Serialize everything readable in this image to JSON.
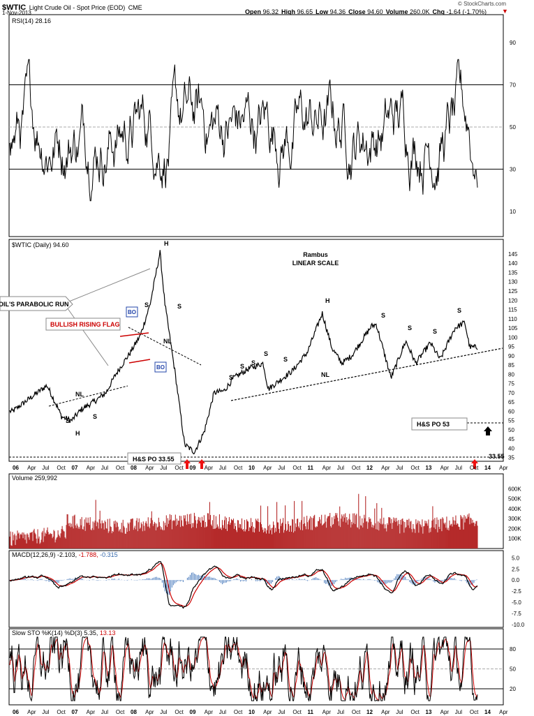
{
  "header": {
    "symbol": "$WTIC",
    "name": "Light Crude Oil - Spot Price (EOD)",
    "exchange": "CME",
    "date": "1-Nov-2013",
    "copyright": "© StockCharts.com",
    "stats": [
      {
        "label": "Open",
        "value": "96.32"
      },
      {
        "label": "High",
        "value": "96.65"
      },
      {
        "label": "Low",
        "value": "94.36"
      },
      {
        "label": "Close",
        "value": "94.60"
      },
      {
        "label": "Volume",
        "value": "260.0K"
      },
      {
        "label": "Chg",
        "value": "-1.64 (-1.70%)"
      }
    ],
    "down_arrow_color": "#cc0000"
  },
  "x_labels": [
    "06",
    "Apr",
    "Jul",
    "Oct",
    "07",
    "Apr",
    "Jul",
    "Oct",
    "08",
    "Apr",
    "Jul",
    "Oct",
    "09",
    "Apr",
    "Jul",
    "Oct",
    "10",
    "Apr",
    "Jul",
    "Oct",
    "11",
    "Apr",
    "Jul",
    "Oct",
    "12",
    "Apr",
    "Jul",
    "Oct",
    "13",
    "Apr",
    "Jul",
    "Oct",
    "14",
    "Apr"
  ],
  "chart_data": [
    {
      "type": "line",
      "title": "RSI(14) 28.16",
      "ylim": [
        0,
        100
      ],
      "yticks": [
        90,
        70,
        50,
        30,
        10
      ],
      "reference_lines": [
        70,
        50,
        30
      ],
      "series": [
        {
          "name": "RSI(14)",
          "last": 28.16
        }
      ]
    },
    {
      "type": "line",
      "title": "$WTIC (Daily) 94.60",
      "scale": "linear",
      "ylim": [
        33,
        148
      ],
      "yticks": [
        145,
        140,
        135,
        130,
        125,
        120,
        115,
        110,
        105,
        100,
        95,
        90,
        85,
        80,
        75,
        70,
        65,
        60,
        55,
        50,
        45,
        40,
        35
      ],
      "series": [
        {
          "name": "$WTIC",
          "x": [
            "2006-01",
            "2006-04",
            "2006-07",
            "2006-08",
            "2006-10",
            "2006-11",
            "2007-01",
            "2007-03",
            "2007-06",
            "2007-08",
            "2007-10",
            "2008-01",
            "2008-03",
            "2008-05",
            "2008-07",
            "2008-08",
            "2008-10",
            "2008-12",
            "2009-02",
            "2009-04",
            "2009-06",
            "2009-08",
            "2009-10",
            "2010-01",
            "2010-04",
            "2010-05",
            "2010-07",
            "2010-10",
            "2011-01",
            "2011-04",
            "2011-06",
            "2011-08",
            "2011-10",
            "2012-02",
            "2012-03",
            "2012-06",
            "2012-09",
            "2012-11",
            "2013-02",
            "2013-04",
            "2013-07",
            "2013-09",
            "2013-10"
          ],
          "values": [
            60,
            66,
            72,
            74,
            63,
            57,
            55,
            61,
            66,
            70,
            80,
            92,
            101,
            118,
            146,
            118,
            82,
            42,
            38,
            49,
            70,
            71,
            78,
            83,
            86,
            72,
            76,
            82,
            92,
            113,
            94,
            86,
            90,
            106,
            107,
            78,
            98,
            86,
            97,
            88,
            105,
            108,
            94.6
          ]
        }
      ],
      "annotations": {
        "watermark": [
          "Rambus",
          "LINEAR SCALE"
        ],
        "neckline_labels": [
          "NL",
          "NL",
          "NL"
        ],
        "shoulder_labels": [
          "S",
          "S",
          "S",
          "S",
          "S",
          "S",
          "S",
          "S",
          "S",
          "S",
          "S",
          "S",
          "S",
          "S",
          "S",
          "S",
          "S",
          "S"
        ],
        "head_labels": [
          "H",
          "H",
          "H"
        ],
        "bo_labels": [
          "BO",
          "BO"
        ],
        "parabolic": "OIL'S PARABOLIC RUN",
        "flag": "BULLISH RISING FLAG",
        "hs_po_low": "H&S PO 33.55",
        "hs_po_low_value": "33.55",
        "hs_po_high": "H&S PO 53",
        "box_border": "#2244aa",
        "flag_color": "#cc0000",
        "arrow_red": "#ee1111"
      }
    },
    {
      "type": "bar",
      "title": "Volume 259,992",
      "ylim": [
        0,
        700
      ],
      "yticks": [
        "600K",
        "500K",
        "400K",
        "300K",
        "200K",
        "100K"
      ],
      "color": "#b52a2a"
    },
    {
      "type": "line",
      "title_parts": [
        "MACD(12,26,9)",
        "-2.103,",
        "-1.788,",
        "-0.315"
      ],
      "title_colors": [
        "#000000",
        "#000000",
        "#cc0000",
        "#3366aa"
      ],
      "ylim": [
        -10.5,
        6
      ],
      "yticks": [
        "5.0",
        "2.5",
        "0.0",
        "-2.5",
        "-5.0",
        "-7.5",
        "-10.0"
      ],
      "histogram_color": "#4477bb"
    },
    {
      "type": "line",
      "title_parts": [
        "Slow STO %K(14) %D(3)",
        "5.35,",
        "13.13"
      ],
      "title_colors": [
        "#000000",
        "#000000",
        "#cc0000"
      ],
      "ylim": [
        0,
        100
      ],
      "yticks": [
        "80",
        "50",
        "20"
      ],
      "reference_lines": [
        80,
        50,
        20
      ]
    }
  ]
}
